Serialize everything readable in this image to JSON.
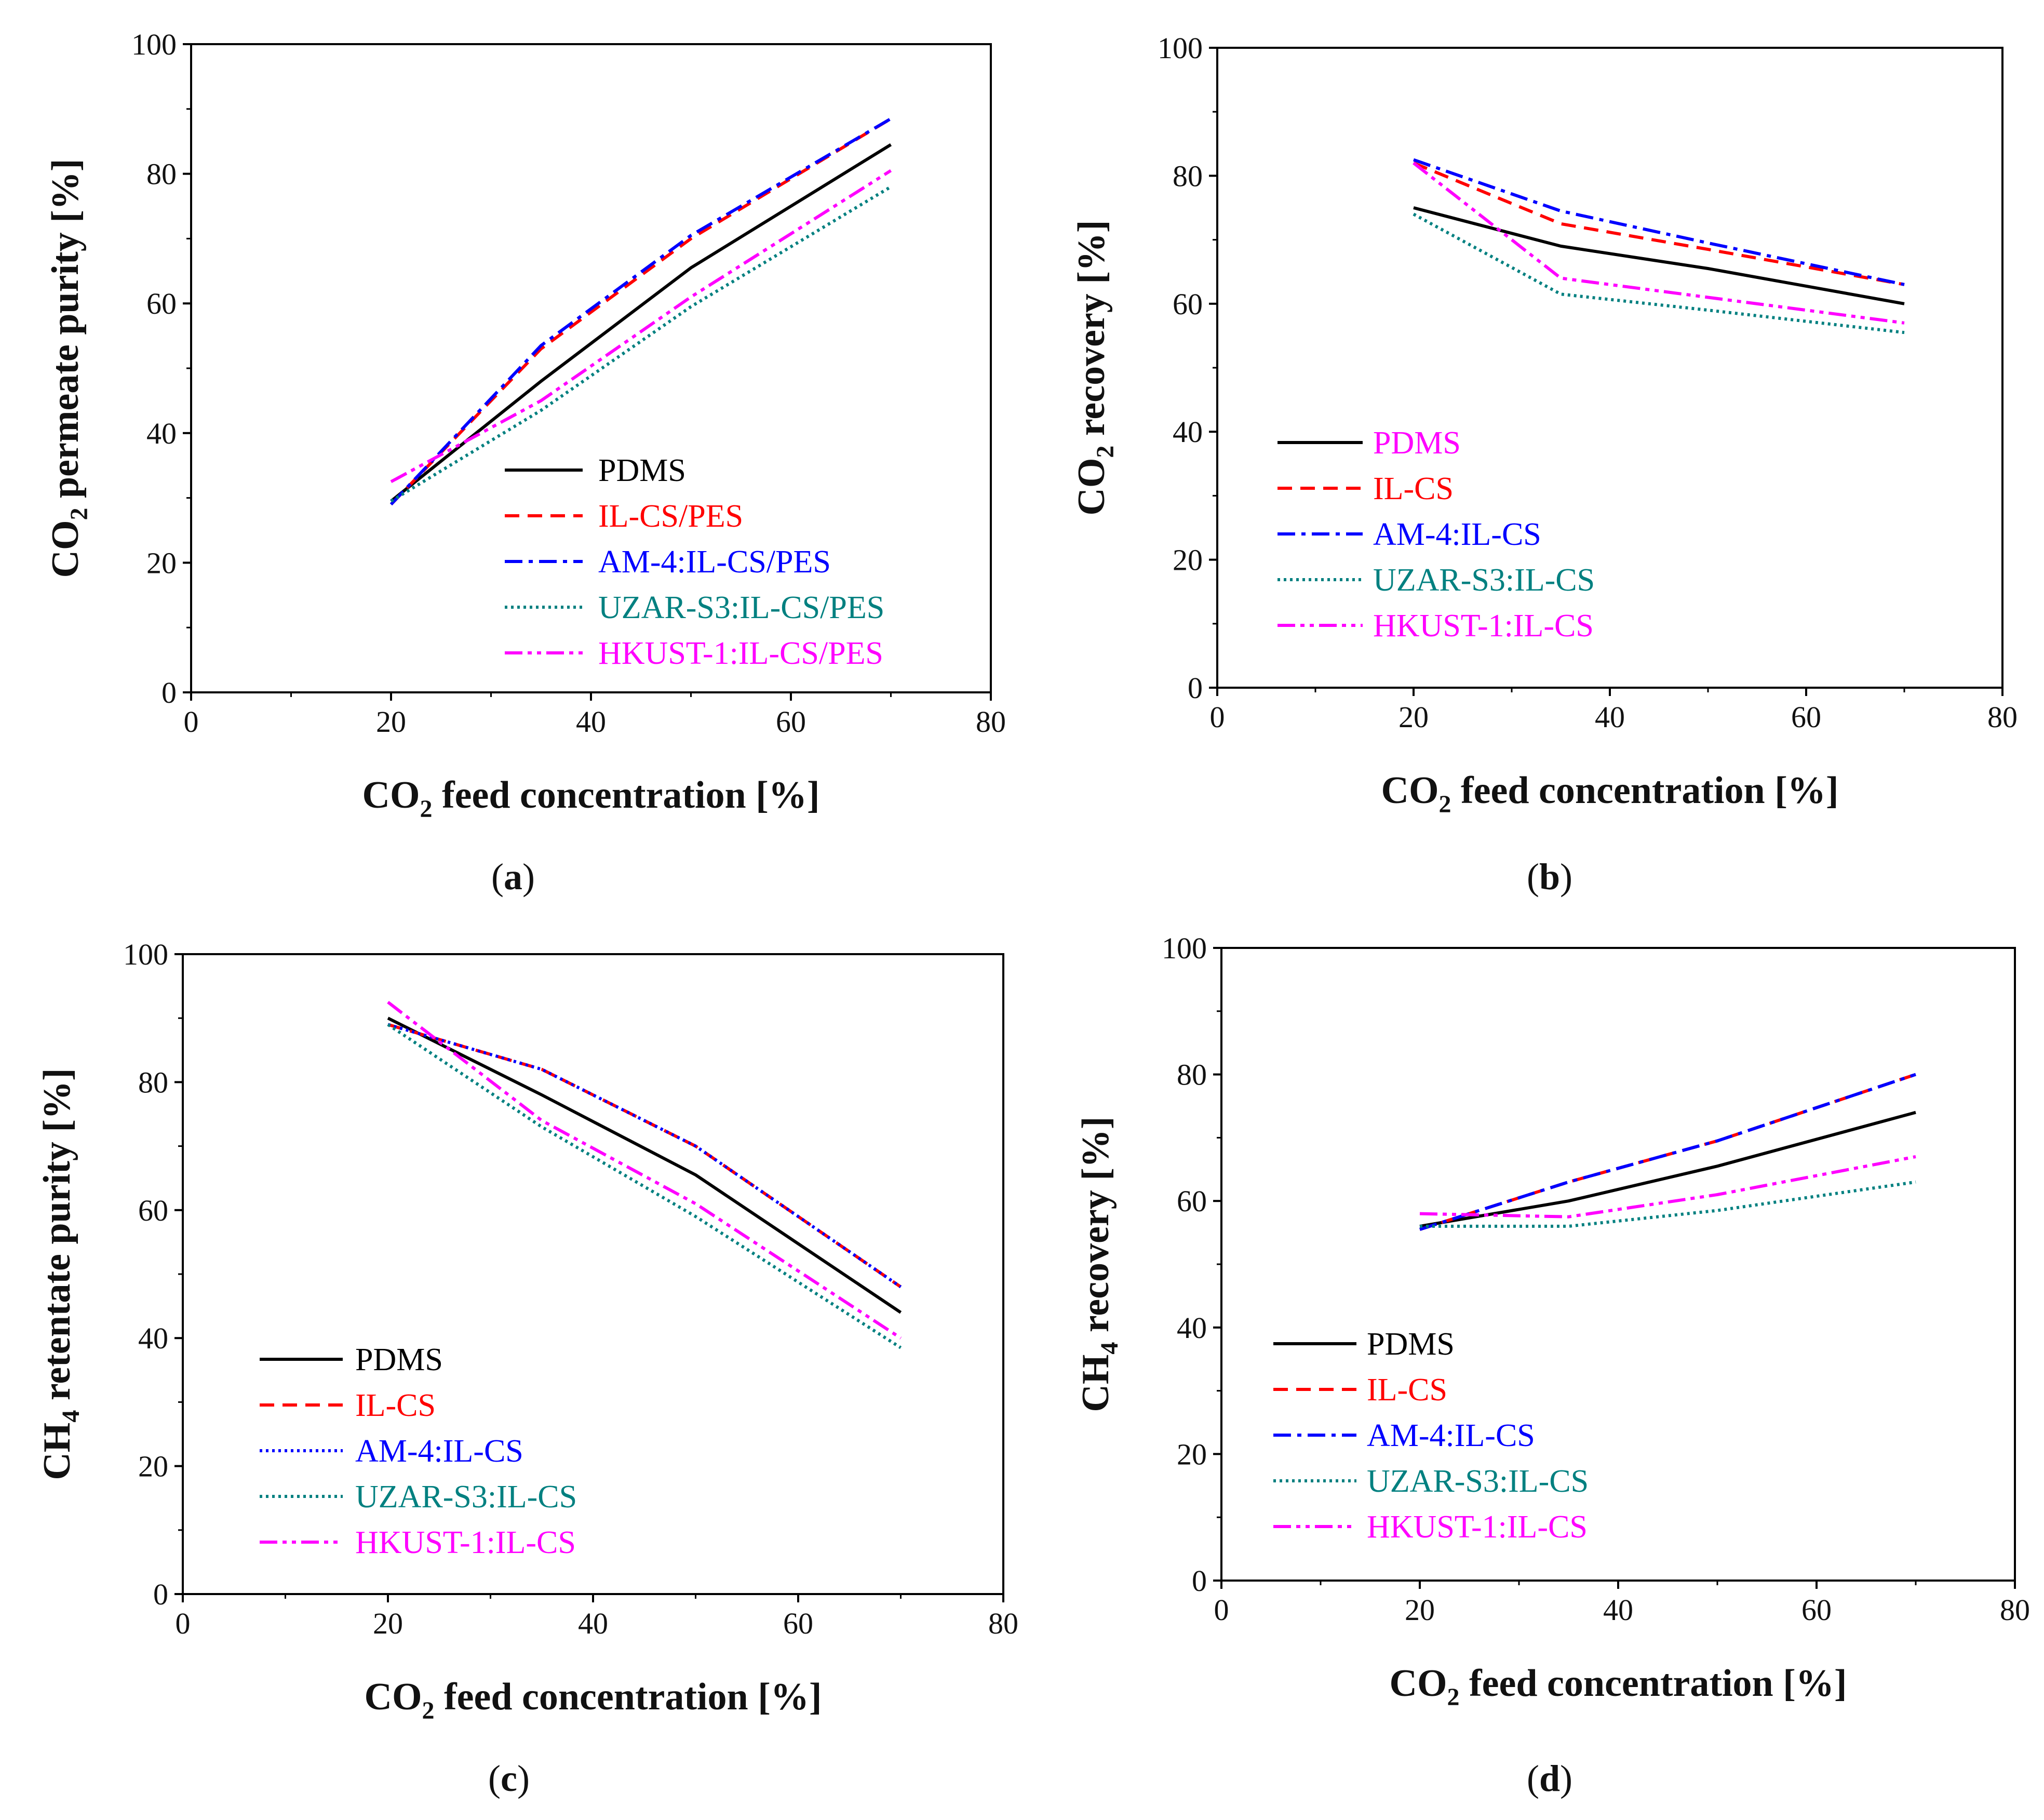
{
  "colors": {
    "PDMS": "#000000",
    "IL-CS": "#ff0000",
    "AM-4": "#0000ff",
    "UZAR-S3": "#008080",
    "HKUST-1": "#ff00ff"
  },
  "chart_data": [
    {
      "id": "a",
      "type": "line",
      "caption": {
        "open": "(",
        "letter": "a",
        "close": ")"
      },
      "ylabel": {
        "pre": "CO",
        "sub": "2",
        "post": " permeate purity [%]"
      },
      "xlabel": {
        "pre": "CO",
        "sub": "2",
        "post": " feed concentration [%]"
      },
      "xlim": [
        0,
        80
      ],
      "ylim": [
        0,
        100
      ],
      "xticks": [
        "0",
        "20",
        "40",
        "60",
        "80"
      ],
      "yticks": [
        "0",
        "20",
        "40",
        "60",
        "80",
        "100"
      ],
      "legend_position": "lower-right",
      "series": [
        {
          "name": "PDMS",
          "label_color_key": "PDMS",
          "color_key": "PDMS",
          "dash": "solid",
          "x": [
            20,
            35,
            50,
            70
          ],
          "y": [
            29.5,
            48,
            65.5,
            84.5
          ]
        },
        {
          "name": "IL-CS/PES",
          "label_color_key": "IL-CS",
          "color_key": "IL-CS",
          "dash": "dash",
          "x": [
            20,
            35,
            50,
            70
          ],
          "y": [
            29,
            53,
            70,
            88.5
          ]
        },
        {
          "name": "AM-4:IL-CS/PES",
          "label_color_key": "AM-4",
          "color_key": "AM-4",
          "dash": "dashdot",
          "x": [
            20,
            35,
            50,
            70
          ],
          "y": [
            29,
            53.5,
            70.5,
            88.5
          ]
        },
        {
          "name": "UZAR-S3:IL-CS/PES",
          "label_color_key": "UZAR-S3",
          "color_key": "UZAR-S3",
          "dash": "dot",
          "x": [
            20,
            35,
            50,
            70
          ],
          "y": [
            29.5,
            43.5,
            59.5,
            78
          ]
        },
        {
          "name": "HKUST-1:IL-CS/PES",
          "label_color_key": "HKUST-1",
          "color_key": "HKUST-1",
          "dash": "dashdotdot",
          "x": [
            20,
            35,
            50,
            70
          ],
          "y": [
            32.5,
            45,
            61,
            80.5
          ]
        }
      ]
    },
    {
      "id": "b",
      "type": "line",
      "caption": {
        "open": "(",
        "letter": "b",
        "close": ")"
      },
      "ylabel": {
        "pre": "CO",
        "sub": "2",
        "post": " recovery [%]"
      },
      "xlabel": {
        "pre": "CO",
        "sub": "2",
        "post": " feed concentration [%]"
      },
      "xlim": [
        0,
        80
      ],
      "ylim": [
        0,
        100
      ],
      "xticks": [
        "0",
        "20",
        "40",
        "60",
        "80"
      ],
      "yticks": [
        "0",
        "20",
        "40",
        "60",
        "80",
        "100"
      ],
      "legend_position": "lower-left",
      "series": [
        {
          "name": "PDMS",
          "label_color_key": "HKUST-1",
          "color_key": "PDMS",
          "dash": "solid",
          "x": [
            20,
            35,
            50,
            70
          ],
          "y": [
            75,
            69,
            65.5,
            60
          ]
        },
        {
          "name": "IL-CS",
          "label_color_key": "IL-CS",
          "color_key": "IL-CS",
          "dash": "dash",
          "x": [
            20,
            35,
            50,
            70
          ],
          "y": [
            82,
            72.5,
            68.5,
            63
          ]
        },
        {
          "name": "AM-4:IL-CS",
          "label_color_key": "AM-4",
          "color_key": "AM-4",
          "dash": "dashdot",
          "x": [
            20,
            35,
            50,
            70
          ],
          "y": [
            82.5,
            74.5,
            69.5,
            63
          ]
        },
        {
          "name": "UZAR-S3:IL-CS",
          "label_color_key": "UZAR-S3",
          "color_key": "UZAR-S3",
          "dash": "dot",
          "x": [
            20,
            35,
            50,
            70
          ],
          "y": [
            74,
            61.5,
            59,
            55.5
          ]
        },
        {
          "name": "HKUST-1:IL-CS",
          "label_color_key": "HKUST-1",
          "color_key": "HKUST-1",
          "dash": "dashdotdot",
          "x": [
            20,
            35,
            50,
            70
          ],
          "y": [
            82,
            64,
            61,
            57
          ]
        }
      ]
    },
    {
      "id": "c",
      "type": "line",
      "caption": {
        "open": "(",
        "letter": "c",
        "close": ")"
      },
      "ylabel": {
        "pre": "CH",
        "sub": "4",
        "post": " retentate purity [%]"
      },
      "xlabel": {
        "pre": "CO",
        "sub": "2",
        "post": " feed concentration [%]"
      },
      "xlim": [
        0,
        80
      ],
      "ylim": [
        0,
        100
      ],
      "xticks": [
        "0",
        "20",
        "40",
        "60",
        "80"
      ],
      "yticks": [
        "0",
        "20",
        "40",
        "60",
        "80",
        "100"
      ],
      "legend_position": "lower-left",
      "series": [
        {
          "name": "PDMS",
          "label_color_key": "PDMS",
          "color_key": "PDMS",
          "dash": "solid",
          "x": [
            20,
            35,
            50,
            70
          ],
          "y": [
            90,
            78,
            65.5,
            44
          ]
        },
        {
          "name": "IL-CS",
          "label_color_key": "IL-CS",
          "color_key": "IL-CS",
          "dash": "dash",
          "x": [
            20,
            35,
            50,
            70
          ],
          "y": [
            89,
            82,
            70,
            48
          ]
        },
        {
          "name": "AM-4:IL-CS",
          "label_color_key": "AM-4",
          "color_key": "AM-4",
          "dash": "dot",
          "x": [
            20,
            35,
            50,
            70
          ],
          "y": [
            89,
            82,
            70,
            48
          ]
        },
        {
          "name": "UZAR-S3:IL-CS",
          "label_color_key": "UZAR-S3",
          "color_key": "UZAR-S3",
          "dash": "dot",
          "x": [
            20,
            35,
            50,
            70
          ],
          "y": [
            89,
            73,
            59,
            38.5
          ]
        },
        {
          "name": "HKUST-1:IL-CS",
          "label_color_key": "HKUST-1",
          "color_key": "HKUST-1",
          "dash": "dashdotdot",
          "x": [
            20,
            35,
            50,
            70
          ],
          "y": [
            92.5,
            74,
            61,
            40
          ]
        }
      ]
    },
    {
      "id": "d",
      "type": "line",
      "caption": {
        "open": "(",
        "letter": "d",
        "close": ")"
      },
      "ylabel": {
        "pre": "CH",
        "sub": "4",
        "post": " recovery [%]"
      },
      "xlabel": {
        "pre": "CO",
        "sub": "2",
        "post": " feed concentration [%]"
      },
      "xlim": [
        0,
        80
      ],
      "ylim": [
        0,
        100
      ],
      "xticks": [
        "0",
        "20",
        "40",
        "60",
        "80"
      ],
      "yticks": [
        "0",
        "20",
        "40",
        "60",
        "80",
        "100"
      ],
      "legend_position": "lower-left",
      "series": [
        {
          "name": "PDMS",
          "label_color_key": "PDMS",
          "color_key": "PDMS",
          "dash": "solid",
          "x": [
            20,
            35,
            50,
            70
          ],
          "y": [
            56,
            60,
            65.5,
            74
          ]
        },
        {
          "name": "IL-CS",
          "label_color_key": "IL-CS",
          "color_key": "IL-CS",
          "dash": "dash",
          "x": [
            20,
            35,
            50,
            70
          ],
          "y": [
            55.5,
            63,
            69.5,
            80
          ]
        },
        {
          "name": "AM-4:IL-CS",
          "label_color_key": "AM-4",
          "color_key": "AM-4",
          "dash": "dashdot",
          "x": [
            20,
            35,
            50,
            70
          ],
          "y": [
            55.5,
            63,
            69.5,
            80
          ]
        },
        {
          "name": "UZAR-S3:IL-CS",
          "label_color_key": "UZAR-S3",
          "color_key": "UZAR-S3",
          "dash": "dot",
          "x": [
            20,
            35,
            50,
            70
          ],
          "y": [
            56,
            56,
            58.5,
            63
          ]
        },
        {
          "name": "HKUST-1:IL-CS",
          "label_color_key": "HKUST-1",
          "color_key": "HKUST-1",
          "dash": "dashdotdot",
          "x": [
            20,
            35,
            50,
            70
          ],
          "y": [
            58,
            57.5,
            61,
            67
          ]
        }
      ]
    }
  ]
}
